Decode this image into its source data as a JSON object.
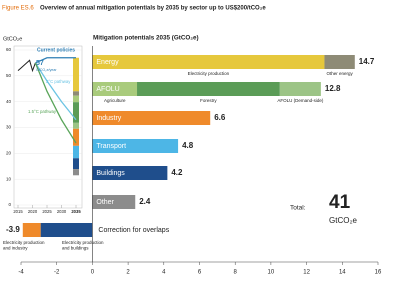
{
  "title": {
    "figure": "Figure ES.6",
    "text": "Overview of annual mitigation potentials by 2035 by sector up to US$200/tCO₂e"
  },
  "chart_data": [
    {
      "type": "line",
      "y_label": "GtCO₂e",
      "x": [
        2015,
        2016,
        2017,
        2018,
        2019,
        2020,
        2021,
        2025,
        2030,
        2035
      ],
      "xlim": [
        2015,
        2035
      ],
      "xticks": [
        2015,
        2020,
        2025,
        2030,
        2035
      ],
      "ylim": [
        0,
        60
      ],
      "yticks": [
        0,
        10,
        20,
        30,
        40,
        50,
        60
      ],
      "series": [
        {
          "color": "#222222",
          "values": [
            52,
            53,
            54,
            55,
            56,
            52,
            55,
            null,
            null,
            null
          ]
        },
        {
          "name": "Current policies",
          "color": "#2f7fb5",
          "values": [
            null,
            null,
            null,
            null,
            null,
            null,
            55,
            57,
            57,
            57
          ]
        },
        {
          "name": "2°C pathway",
          "color": "#6cc4e4",
          "values": [
            null,
            null,
            null,
            null,
            null,
            null,
            55,
            48,
            40,
            33
          ]
        },
        {
          "name": "1.5°C pathway",
          "color": "#5aa55a",
          "values": [
            null,
            null,
            null,
            null,
            null,
            null,
            55,
            44,
            33,
            24
          ]
        }
      ],
      "annotation": {
        "value": 57,
        "unit": "GtCO₂e/year"
      }
    },
    {
      "type": "hbar",
      "title": "Mitigation potentials 2035 (GtCO₂e)",
      "xlim": [
        -4,
        16
      ],
      "xticks": [
        -4,
        -2,
        0,
        2,
        4,
        6,
        8,
        10,
        12,
        14,
        16
      ],
      "bars": [
        {
          "category": "Energy",
          "value": 14.7,
          "segments": [
            {
              "label": "Electricity production",
              "value": 13.0,
              "color": "#e6c83c"
            },
            {
              "label": "Other energy",
              "value": 1.7,
              "color": "#8e8b76"
            }
          ]
        },
        {
          "category": "AFOLU",
          "value": 12.8,
          "segments": [
            {
              "label": "Agriculture",
              "value": 2.5,
              "color": "#a9cb7c"
            },
            {
              "label": "Forestry",
              "value": 8.0,
              "color": "#5b9c57"
            },
            {
              "label": "AFOLU (Demand-side)",
              "value": 2.3,
              "color": "#9cc486"
            }
          ]
        },
        {
          "category": "Industry",
          "value": 6.6,
          "color": "#ef8a2b"
        },
        {
          "category": "Transport",
          "value": 4.8,
          "color": "#4db6e6"
        },
        {
          "category": "Buildings",
          "value": 4.2,
          "color": "#1f4e8c"
        },
        {
          "category": "Other",
          "value": 2.4,
          "color": "#8c8c8c"
        },
        {
          "category": "Correction for overlaps",
          "value": -3.9,
          "segments": [
            {
              "label": "Electricity production and buildings",
              "value": -2.9,
              "color": "#1f4e8c"
            },
            {
              "label": "Electricity production and industry",
              "value": -1.0,
              "color": "#ef8a2b"
            }
          ]
        }
      ],
      "total": {
        "label": "Total:",
        "value": 41,
        "unit": "GtCO₂e"
      }
    }
  ]
}
